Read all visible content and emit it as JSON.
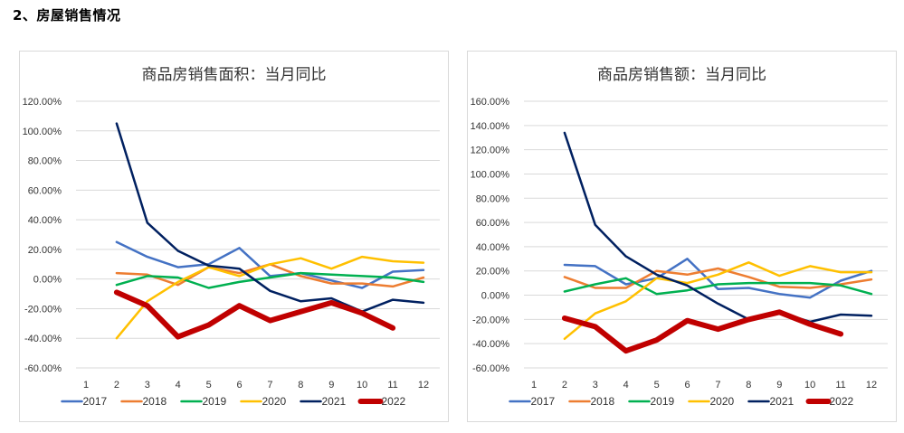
{
  "section": {
    "title": "2、房屋销售情况"
  },
  "chart_data": [
    {
      "type": "line",
      "title": "商品房销售面积：当月同比",
      "xlabel": "",
      "ylabel": "",
      "x": [
        1,
        2,
        3,
        4,
        5,
        6,
        7,
        8,
        9,
        10,
        11,
        12
      ],
      "ylim": [
        -60,
        120
      ],
      "yticks": [
        -60,
        -40,
        -20,
        0,
        20,
        40,
        60,
        80,
        100,
        120
      ],
      "ytick_labels": [
        "-60.00%",
        "-40.00%",
        "-20.00%",
        "0.00%",
        "20.00%",
        "40.00%",
        "60.00%",
        "80.00%",
        "100.00%",
        "120.00%"
      ],
      "grid": true,
      "legend": "bottom",
      "series": [
        {
          "name": "2017",
          "color": "#4472C4",
          "values": [
            null,
            25,
            15,
            8,
            10,
            21,
            2,
            4,
            -1,
            -6,
            5,
            6
          ]
        },
        {
          "name": "2018",
          "color": "#ED7D31",
          "values": [
            null,
            4,
            3,
            -4,
            8,
            4,
            10,
            2,
            -3,
            -3,
            -5,
            1
          ]
        },
        {
          "name": "2019",
          "color": "#00B050",
          "values": [
            null,
            -4,
            2,
            1,
            -6,
            -2,
            1,
            4,
            3,
            2,
            1,
            -2
          ]
        },
        {
          "name": "2020",
          "color": "#FFC000",
          "values": [
            null,
            -40,
            -15,
            -2,
            8,
            2,
            10,
            14,
            7,
            15,
            12,
            11
          ]
        },
        {
          "name": "2021",
          "color": "#002060",
          "values": [
            null,
            105,
            38,
            19,
            9,
            7,
            -8,
            -15,
            -13,
            -22,
            -14,
            -16
          ]
        },
        {
          "name": "2022",
          "color": "#C00000",
          "values": [
            null,
            -9,
            -18,
            -39,
            -31,
            -18,
            -28,
            -22,
            -16,
            -23,
            -33,
            null
          ]
        }
      ]
    },
    {
      "type": "line",
      "title": "商品房销售额：当月同比",
      "xlabel": "",
      "ylabel": "",
      "x": [
        1,
        2,
        3,
        4,
        5,
        6,
        7,
        8,
        9,
        10,
        11,
        12
      ],
      "ylim": [
        -60,
        160
      ],
      "yticks": [
        -60,
        -40,
        -20,
        0,
        20,
        40,
        60,
        80,
        100,
        120,
        140,
        160
      ],
      "ytick_labels": [
        "-60.00%",
        "-40.00%",
        "-20.00%",
        "0.00%",
        "20.00%",
        "40.00%",
        "60.00%",
        "80.00%",
        "100.00%",
        "120.00%",
        "140.00%",
        "160.00%"
      ],
      "grid": true,
      "legend": "bottom",
      "series": [
        {
          "name": "2017",
          "color": "#4472C4",
          "values": [
            null,
            25,
            24,
            9,
            14,
            30,
            5,
            6,
            1,
            -2,
            12,
            20
          ]
        },
        {
          "name": "2018",
          "color": "#ED7D31",
          "values": [
            null,
            15,
            6,
            6,
            20,
            17,
            22,
            15,
            7,
            6,
            9,
            13
          ]
        },
        {
          "name": "2019",
          "color": "#00B050",
          "values": [
            null,
            3,
            9,
            14,
            1,
            4,
            9,
            10,
            10,
            10,
            8,
            1
          ]
        },
        {
          "name": "2020",
          "color": "#FFC000",
          "values": [
            null,
            -36,
            -15,
            -5,
            14,
            10,
            17,
            27,
            16,
            24,
            19,
            19
          ]
        },
        {
          "name": "2021",
          "color": "#002060",
          "values": [
            null,
            134,
            58,
            32,
            17,
            8,
            -7,
            -20,
            -14,
            -22,
            -16,
            -17
          ]
        },
        {
          "name": "2022",
          "color": "#C00000",
          "values": [
            null,
            -19,
            -26,
            -46,
            -37,
            -21,
            -28,
            -20,
            -14,
            -24,
            -32,
            null
          ]
        }
      ]
    }
  ]
}
